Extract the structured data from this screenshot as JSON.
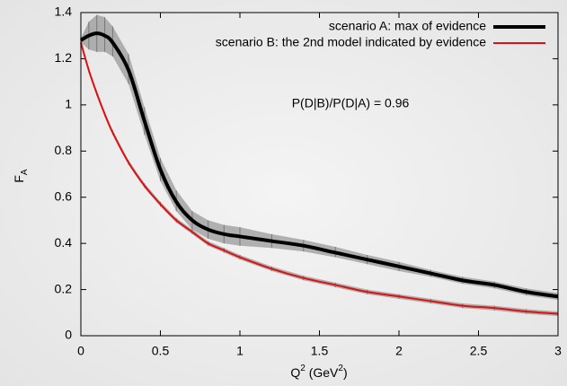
{
  "chart_data": {
    "type": "line",
    "x_label": [
      "Q",
      "2",
      " (GeV",
      "2",
      ")"
    ],
    "y_label": [
      "F",
      "A"
    ],
    "annotation": "P(D|B)/P(D|A)  = 0.96",
    "x": [
      0,
      0.05,
      0.1,
      0.15,
      0.2,
      0.3,
      0.4,
      0.5,
      0.6,
      0.7,
      0.8,
      0.9,
      1.0,
      1.2,
      1.4,
      1.6,
      1.8,
      2.0,
      2.2,
      2.4,
      2.6,
      2.8,
      3.0
    ],
    "series": [
      {
        "name": "scenario A: max of evidence",
        "color": "#000000",
        "band_color": "#999999",
        "values": [
          1.28,
          1.3,
          1.31,
          1.3,
          1.27,
          1.15,
          0.93,
          0.72,
          0.58,
          0.5,
          0.46,
          0.44,
          0.43,
          0.41,
          0.39,
          0.36,
          0.33,
          0.3,
          0.27,
          0.24,
          0.22,
          0.19,
          0.17
        ],
        "lower": [
          1.27,
          1.24,
          1.23,
          1.23,
          1.21,
          1.09,
          0.87,
          0.67,
          0.54,
          0.46,
          0.42,
          0.4,
          0.39,
          0.38,
          0.365,
          0.34,
          0.31,
          0.28,
          0.255,
          0.225,
          0.205,
          0.175,
          0.155
        ],
        "upper": [
          1.29,
          1.36,
          1.39,
          1.38,
          1.34,
          1.22,
          0.99,
          0.77,
          0.63,
          0.54,
          0.5,
          0.48,
          0.47,
          0.44,
          0.415,
          0.385,
          0.35,
          0.32,
          0.285,
          0.255,
          0.235,
          0.205,
          0.185
        ]
      },
      {
        "name": "scenario B: the 2nd model indicated by evidence",
        "color": "#dd1111",
        "band_color": "#999999",
        "values": [
          1.27,
          1.15,
          1.05,
          0.96,
          0.88,
          0.75,
          0.65,
          0.57,
          0.5,
          0.45,
          0.4,
          0.37,
          0.34,
          0.29,
          0.25,
          0.22,
          0.19,
          0.17,
          0.15,
          0.13,
          0.12,
          0.105,
          0.095
        ],
        "lower": [
          1.26,
          1.14,
          1.04,
          0.95,
          0.87,
          0.74,
          0.64,
          0.56,
          0.49,
          0.44,
          0.39,
          0.36,
          0.33,
          0.28,
          0.24,
          0.21,
          0.18,
          0.16,
          0.14,
          0.12,
          0.11,
          0.095,
          0.085
        ],
        "upper": [
          1.28,
          1.16,
          1.06,
          0.97,
          0.89,
          0.76,
          0.66,
          0.58,
          0.51,
          0.46,
          0.41,
          0.38,
          0.35,
          0.3,
          0.26,
          0.23,
          0.2,
          0.18,
          0.16,
          0.14,
          0.13,
          0.115,
          0.105
        ]
      }
    ],
    "xlim": [
      0,
      3
    ],
    "ylim": [
      0,
      1.4
    ],
    "xticks": [
      0,
      0.5,
      1,
      1.5,
      2,
      2.5,
      3
    ],
    "yticks": [
      0,
      0.2,
      0.4,
      0.6,
      0.8,
      1,
      1.2,
      1.4
    ],
    "legend": "top-right"
  }
}
